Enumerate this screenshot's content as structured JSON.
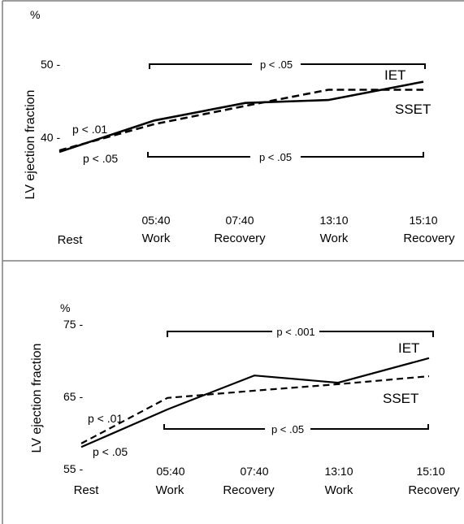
{
  "colors": {
    "line": "#000000",
    "frame": "#7f7f7f",
    "background": "#ffffff"
  },
  "chart_data": [
    {
      "type": "line",
      "ylabel": "LV ejection fraction",
      "yunit": "%",
      "yticks": [
        {
          "value": 50,
          "label": "50 -"
        },
        {
          "value": 40,
          "label": "40 -"
        }
      ],
      "ylim": [
        36.5,
        51.5
      ],
      "grid": false,
      "legend": "labels at right end of lines",
      "categories": [
        {
          "time": "",
          "phase": "Rest"
        },
        {
          "time": "05:40",
          "phase": "Work"
        },
        {
          "time": "07:40",
          "phase": "Recovery"
        },
        {
          "time": "13:10",
          "phase": "Work"
        },
        {
          "time": "15:10",
          "phase": "Recovery"
        }
      ],
      "series": [
        {
          "name": "IET",
          "style": "solid",
          "values": [
            38.0,
            42.3,
            44.7,
            45.1,
            47.6
          ]
        },
        {
          "name": "SSET",
          "style": "dashed",
          "values": [
            38.2,
            41.8,
            44.3,
            46.5,
            46.5
          ]
        }
      ],
      "annotations": [
        {
          "text": "p < .05",
          "kind": "bracket",
          "from": 1,
          "to": 4,
          "position": "above"
        },
        {
          "text": "p < .05",
          "kind": "bracket",
          "from": 1,
          "to": 4,
          "position": "below"
        },
        {
          "text": "p < .01",
          "kind": "label",
          "near": "Rest",
          "series": "SSET"
        },
        {
          "text": "p < .05",
          "kind": "label",
          "near": "Rest",
          "series": "IET"
        }
      ]
    },
    {
      "type": "line",
      "ylabel": "LV ejection fraction",
      "yunit": "%",
      "yticks": [
        {
          "value": 75,
          "label": "75 -"
        },
        {
          "value": 65,
          "label": "65 -"
        },
        {
          "value": 55,
          "label": "55 -"
        }
      ],
      "ylim": [
        55,
        75
      ],
      "grid": false,
      "legend": "labels at right end of lines",
      "categories": [
        {
          "time": "",
          "phase": "Rest"
        },
        {
          "time": "05:40",
          "phase": "Work"
        },
        {
          "time": "07:40",
          "phase": "Recovery"
        },
        {
          "time": "13:10",
          "phase": "Work"
        },
        {
          "time": "15:10",
          "phase": "Recovery"
        }
      ],
      "series": [
        {
          "name": "IET",
          "style": "solid",
          "values": [
            58.0,
            63.2,
            67.9,
            66.9,
            70.3
          ]
        },
        {
          "name": "SSET",
          "style": "dashed",
          "values": [
            58.5,
            64.8,
            65.8,
            66.7,
            67.8
          ]
        }
      ],
      "annotations": [
        {
          "text": "p < .001",
          "kind": "bracket",
          "from": 1,
          "to": 4,
          "position": "above"
        },
        {
          "text": "p < .05",
          "kind": "bracket",
          "from": 1,
          "to": 4,
          "position": "below"
        },
        {
          "text": "p < .01",
          "kind": "label",
          "near": "Rest",
          "series": "SSET"
        },
        {
          "text": "p < .05",
          "kind": "label",
          "near": "Rest",
          "series": "IET"
        }
      ]
    }
  ]
}
